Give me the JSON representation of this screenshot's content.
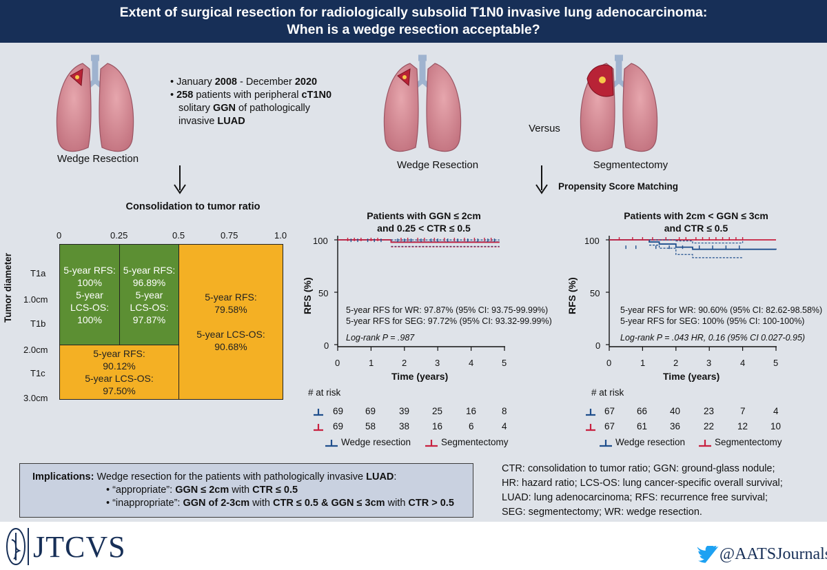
{
  "header": {
    "title_line1": "Extent of surgical resection for radiologically subsolid T1N0 invasive lung adenocarcinoma:",
    "title_line2": "When is a wedge resection acceptable?"
  },
  "left": {
    "lung_label": "Wedge Resection",
    "bullet1_pre": "January ",
    "bullet1_y1": "2008",
    "bullet1_mid": " - December ",
    "bullet1_y2": "2020",
    "bullet2_n": "258",
    "bullet2_a": " patients with peripheral ",
    "bullet2_stage": "cT1N0",
    "bullet2_b": "solitary ",
    "bullet2_ggn": "GGN",
    "bullet2_c": " of pathologically",
    "bullet2_d": "invasive ",
    "bullet2_luad": "LUAD",
    "ctr_title": "Consolidation to tumor ratio",
    "x_ticks": [
      "0",
      "0.25",
      "0.5",
      "0.75",
      "1.0"
    ],
    "y_axis_label": "Tumor diameter",
    "y_labels": [
      "T1a",
      "1.0cm",
      "T1b",
      "2.0cm",
      "T1c",
      "3.0cm"
    ],
    "cells": {
      "a": [
        "5-year RFS:",
        "100%",
        "5-year",
        "LCS-OS:",
        "100%"
      ],
      "b": [
        "5-year RFS:",
        "96.89%",
        "5-year",
        "LCS-OS:",
        "97.87%"
      ],
      "c": [
        "5-year RFS:",
        "79.58%",
        "5-year LCS-OS:",
        "90.68%"
      ],
      "d": [
        "5-year RFS:",
        "90.12%",
        "5-year LCS-OS:",
        "97.50%"
      ]
    },
    "colors": {
      "green": "#5c8f33",
      "orange": "#f4b024"
    }
  },
  "right": {
    "lung1_label": "Wedge Resection",
    "versus": "Versus",
    "lung2_label": "Segmentectomy",
    "psm": "Propensity Score Matching"
  },
  "km1": {
    "title_line1": "Patients with GGN ≤ 2cm",
    "title_line2": "and 0.25 < CTR ≤ 0.5",
    "ylabel": "RFS (%)",
    "xlabel": "Time (years)",
    "y_ticks": [
      "0",
      "50",
      "100"
    ],
    "x_ticks": [
      "0",
      "1",
      "2",
      "3",
      "4",
      "5"
    ],
    "stat1": "5-year RFS for WR: 97.87% (95% CI: 93.75-99.99%)",
    "stat2": "5-year RFS for SEG: 97.72% (95% CI: 93.32-99.99%)",
    "logrank": "Log-rank P = .987",
    "at_risk": "# at risk",
    "risk_wr": [
      "69",
      "69",
      "39",
      "25",
      "16",
      "8"
    ],
    "risk_seg": [
      "69",
      "58",
      "38",
      "16",
      "6",
      "4"
    ]
  },
  "km2": {
    "title_line1": "Patients with 2cm < GGN ≤ 3cm",
    "title_line2": "and CTR ≤ 0.5",
    "ylabel": "RFS (%)",
    "xlabel": "Time (years)",
    "y_ticks": [
      "0",
      "50",
      "100"
    ],
    "x_ticks": [
      "0",
      "1",
      "2",
      "3",
      "4",
      "5"
    ],
    "stat1": "5-year RFS for WR: 90.60% (95% CI: 82.62-98.58%)",
    "stat2": "5-year RFS for SEG: 100% (95% CI: 100-100%)",
    "logrank": "Log-rank P = .043 HR, 0.16 (95% CI 0.027-0.95)",
    "at_risk": "# at risk",
    "risk_wr": [
      "67",
      "66",
      "40",
      "23",
      "7",
      "4"
    ],
    "risk_seg": [
      "67",
      "61",
      "36",
      "22",
      "12",
      "10"
    ]
  },
  "legend": {
    "wr": "Wedge resection",
    "seg": "Segmentectomy",
    "wr_color": "#1f4e8c",
    "seg_color": "#c8203f"
  },
  "implications": {
    "label": "Implications:",
    "text": "Wedge resection for the patients with pathologically invasive ",
    "luad": "LUAD",
    "colon": ":",
    "l1_a": "• “appropriate”: ",
    "l1_b": "GGN ≤ 2cm",
    "l1_c": " with ",
    "l1_d": "CTR ≤ 0.5",
    "l2_a": "• “inappropriate”: ",
    "l2_b": "GGN of 2-3cm",
    "l2_c": " with ",
    "l2_d": "CTR ≤ 0.5 & GGN ≤ 3cm",
    "l2_e": " with ",
    "l2_f": "CTR > 0.5"
  },
  "abbreviations": [
    "CTR: consolidation to tumor ratio; GGN: ground-glass nodule;",
    "HR: hazard ratio; LCS-OS: lung cancer-specific overall survival;",
    "LUAD: lung adenocarcinoma; RFS: recurrence free survival;",
    "SEG: segmentectomy; WR: wedge resection."
  ],
  "footer": {
    "journal": "JTCVS",
    "handle": "@AATSJournals"
  }
}
